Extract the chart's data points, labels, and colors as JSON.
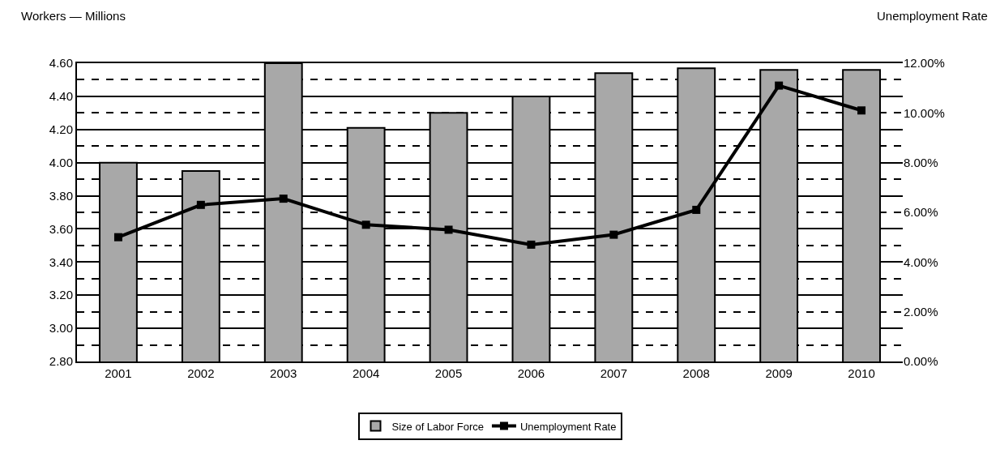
{
  "chart_data": {
    "type": "bar",
    "ylabel": "Workers — Millions",
    "y2label": "Unemployment Rate",
    "categories": [
      "2001",
      "2002",
      "2003",
      "2004",
      "2005",
      "2006",
      "2007",
      "2008",
      "2009",
      "2010"
    ],
    "series": [
      {
        "name": "Size of Labor Force",
        "color": "#a8a8a8",
        "values": [
          4.0,
          3.95,
          4.6,
          4.21,
          4.3,
          4.4,
          4.54,
          4.57,
          4.56,
          4.56
        ]
      },
      {
        "name": "Unemployment Rate",
        "type": "line",
        "axis": "y2",
        "color": "#000000",
        "marker": "square",
        "line_style": "solid",
        "values": [
          5.0,
          6.3,
          6.55,
          5.5,
          5.3,
          4.7,
          5.1,
          6.1,
          11.1,
          10.1
        ]
      }
    ],
    "ylim": [
      2.8,
      4.6
    ],
    "yticks": [
      {
        "value": 2.8,
        "label": "2.80"
      },
      {
        "value": 3.0,
        "label": "3.00"
      },
      {
        "value": 3.2,
        "label": "3.20"
      },
      {
        "value": 3.4,
        "label": "3.40"
      },
      {
        "value": 3.6,
        "label": "3.60"
      },
      {
        "value": 3.8,
        "label": "3.80"
      },
      {
        "value": 4.0,
        "label": "4.00"
      },
      {
        "value": 4.2,
        "label": "4.20"
      },
      {
        "value": 4.4,
        "label": "4.40"
      },
      {
        "value": 4.6,
        "label": "4.60"
      }
    ],
    "y2lim": [
      0,
      12
    ],
    "y2ticks": [
      {
        "value": 0,
        "label": "0.00%"
      },
      {
        "value": 2,
        "label": "2.00%"
      },
      {
        "value": 4,
        "label": "4.00%"
      },
      {
        "value": 6,
        "label": "6.00%"
      },
      {
        "value": 8,
        "label": "8.00%"
      },
      {
        "value": 10,
        "label": "10.00%"
      },
      {
        "value": 12,
        "label": "12.00%"
      }
    ],
    "grid": "y",
    "legend": "bottom"
  }
}
